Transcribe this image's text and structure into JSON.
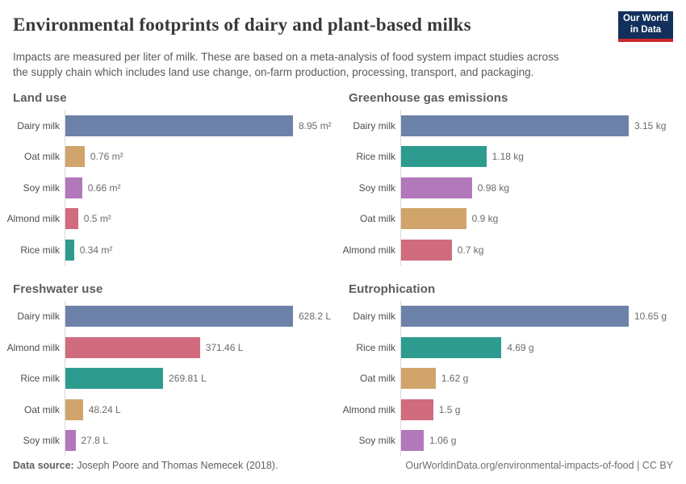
{
  "header": {
    "title": "Environmental footprints of dairy and plant-based milks",
    "subtitle_lines": [
      "Impacts are measured per liter of milk. These are based on a meta-analysis of food system impact studies across",
      "the supply chain which includes land use change, on-farm production, processing, transport, and packaging."
    ],
    "logo": {
      "line1": "Our World",
      "line2": "in Data"
    }
  },
  "colors": {
    "Dairy milk": "#6d82a8",
    "Oat milk": "#d1a46c",
    "Soy milk": "#b179b9",
    "Almond milk": "#d06c7e",
    "Rice milk": "#2d9c8f",
    "logo_bg": "#12305b",
    "logo_accent": "#c8292e",
    "axis": "#d9d9d9"
  },
  "chart_data": [
    {
      "type": "bar",
      "title": "Land use",
      "orientation": "horizontal",
      "unit": "m²",
      "categories": [
        "Dairy milk",
        "Oat milk",
        "Soy milk",
        "Almond milk",
        "Rice milk"
      ],
      "values": [
        8.95,
        0.76,
        0.66,
        0.5,
        0.34
      ],
      "value_labels": [
        "8.95 m²",
        "0.76 m²",
        "0.66 m²",
        "0.5 m²",
        "0.34 m²"
      ],
      "xlim": [
        0,
        8.95
      ],
      "grid": false,
      "legend": "none"
    },
    {
      "type": "bar",
      "title": "Greenhouse gas emissions",
      "orientation": "horizontal",
      "unit": "kg",
      "categories": [
        "Dairy milk",
        "Rice milk",
        "Soy milk",
        "Oat milk",
        "Almond milk"
      ],
      "values": [
        3.15,
        1.18,
        0.98,
        0.9,
        0.7
      ],
      "value_labels": [
        "3.15 kg",
        "1.18 kg",
        "0.98 kg",
        "0.9 kg",
        "0.7 kg"
      ],
      "xlim": [
        0,
        3.15
      ],
      "grid": false,
      "legend": "none"
    },
    {
      "type": "bar",
      "title": "Freshwater use",
      "orientation": "horizontal",
      "unit": "L",
      "categories": [
        "Dairy milk",
        "Almond milk",
        "Rice milk",
        "Oat milk",
        "Soy milk"
      ],
      "values": [
        628.2,
        371.46,
        269.81,
        48.24,
        27.8
      ],
      "value_labels": [
        "628.2 L",
        "371.46 L",
        "269.81 L",
        "48.24 L",
        "27.8 L"
      ],
      "xlim": [
        0,
        628.2
      ],
      "grid": false,
      "legend": "none"
    },
    {
      "type": "bar",
      "title": "Eutrophication",
      "orientation": "horizontal",
      "unit": "g",
      "categories": [
        "Dairy milk",
        "Rice milk",
        "Oat milk",
        "Almond milk",
        "Soy milk"
      ],
      "values": [
        10.65,
        4.69,
        1.62,
        1.5,
        1.06
      ],
      "value_labels": [
        "10.65 g",
        "4.69 g",
        "1.62 g",
        "1.5 g",
        "1.06 g"
      ],
      "xlim": [
        0,
        10.65
      ],
      "grid": false,
      "legend": "none"
    }
  ],
  "footer": {
    "source_label": "Data source:",
    "source_text": " Joseph Poore and Thomas Nemecek (2018).",
    "url": "OurWorldinData.org/environmental-impacts-of-food",
    "separator": " | ",
    "license": "CC BY"
  }
}
